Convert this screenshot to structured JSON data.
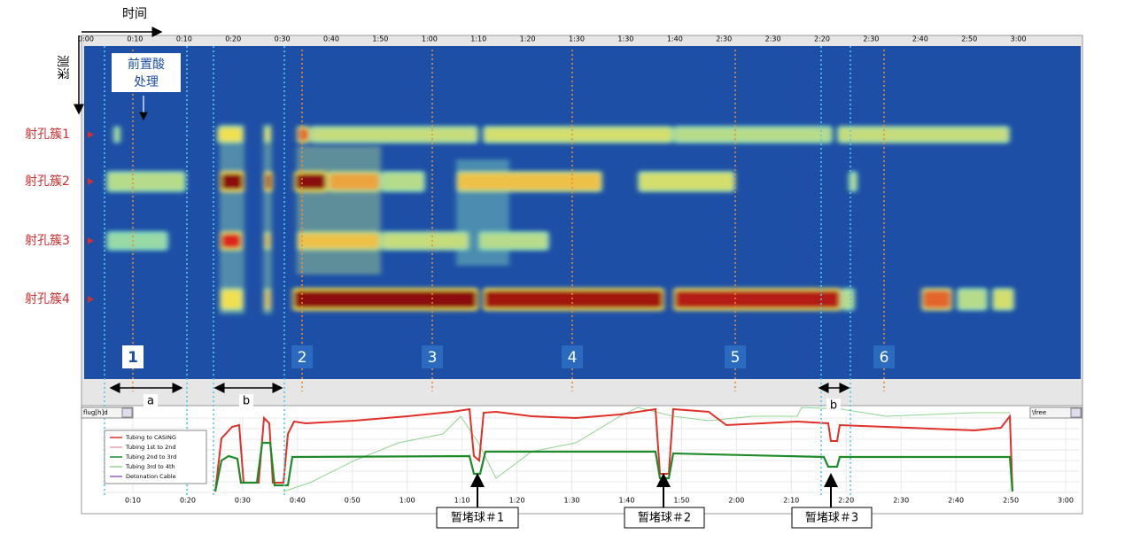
{
  "axis_labels": {
    "time": "时间",
    "depth": "测深"
  },
  "annotation": {
    "lines": [
      "前置酸",
      "处理"
    ]
  },
  "clusters": [
    "射孔簇1",
    "射孔簇2",
    "射孔簇3",
    "射孔簇4"
  ],
  "top_time_labels": [
    "0:00",
    "0:10",
    "0:10",
    "0:20",
    "0:30",
    "0:40",
    "1:50",
    "1:00",
    "1:10",
    "1:20",
    "1:30",
    "1:30",
    "1:40",
    "2:30",
    "2:30",
    "2:20",
    "2:30",
    "2:40",
    "2:50",
    "3:00"
  ],
  "stages": [
    "1",
    "2",
    "3",
    "4",
    "5",
    "6"
  ],
  "intervals": [
    "a",
    "b",
    "b"
  ],
  "bottom_time_labels": [
    "0:10",
    "0:20",
    "0:30",
    "0:40",
    "0:50",
    "1:00",
    "1:10",
    "1:20",
    "1:30",
    "1:40",
    "1:50",
    "2:00",
    "2:10",
    "2:20",
    "2:30",
    "2:40",
    "2:50",
    "3:00"
  ],
  "legend": [
    "Tubing to CASING",
    "Tubing 1st to 2nd",
    "Tubing 2nd to 3rd",
    "Tubing 3rd to 4th",
    "Detonation Cable"
  ],
  "dropdowns": [
    "flug[h]d",
    "\\free"
  ],
  "plugs": [
    "暂堵球＃1",
    "暂堵球＃2",
    "暂堵球＃3"
  ]
}
